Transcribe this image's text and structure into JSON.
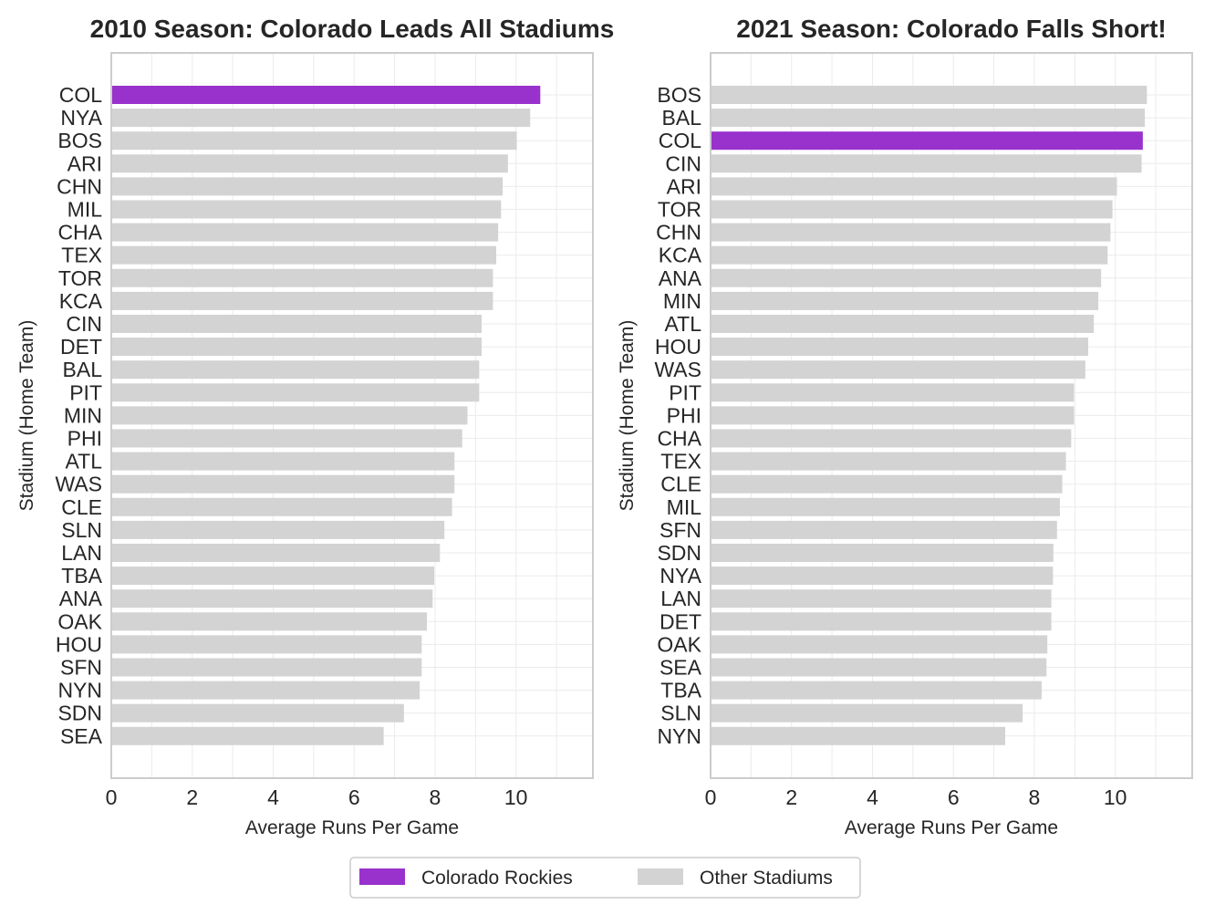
{
  "legend": {
    "items": [
      {
        "label": "Colorado Rockies",
        "color": "#9932CC"
      },
      {
        "label": "Other Stadiums",
        "color": "#D3D3D3"
      }
    ]
  },
  "chart_data": [
    {
      "type": "bar",
      "orientation": "horizontal",
      "title": "2010 Season: Colorado Leads All Stadiums",
      "xlabel": "Average Runs Per Game",
      "ylabel": "Stadium (Home Team)",
      "xlim": [
        0,
        11.9
      ],
      "xticks": [
        0,
        2,
        4,
        6,
        8,
        10
      ],
      "grid": true,
      "highlight_category": "COL",
      "highlight_color": "#9932CC",
      "bar_color": "#D3D3D3",
      "categories": [
        "COL",
        "NYA",
        "BOS",
        "ARI",
        "CHN",
        "MIL",
        "CHA",
        "TEX",
        "TOR",
        "KCA",
        "CIN",
        "DET",
        "BAL",
        "PIT",
        "MIN",
        "PHI",
        "ATL",
        "WAS",
        "CLE",
        "SLN",
        "LAN",
        "TBA",
        "ANA",
        "OAK",
        "HOU",
        "SFN",
        "NYN",
        "SDN",
        "SEA"
      ],
      "values": [
        10.6,
        10.35,
        10.02,
        9.8,
        9.67,
        9.63,
        9.56,
        9.51,
        9.43,
        9.43,
        9.15,
        9.15,
        9.09,
        9.09,
        8.8,
        8.67,
        8.48,
        8.48,
        8.42,
        8.23,
        8.12,
        7.98,
        7.94,
        7.8,
        7.67,
        7.67,
        7.62,
        7.23,
        6.73
      ]
    },
    {
      "type": "bar",
      "orientation": "horizontal",
      "title": "2021 Season: Colorado Falls Short!",
      "xlabel": "Average Runs Per Game",
      "ylabel": "Stadium (Home Team)",
      "xlim": [
        0,
        11.9
      ],
      "xticks": [
        0,
        2,
        4,
        6,
        8,
        10
      ],
      "grid": true,
      "highlight_category": "COL",
      "highlight_color": "#9932CC",
      "bar_color": "#D3D3D3",
      "categories": [
        "BOS",
        "BAL",
        "COL",
        "CIN",
        "ARI",
        "TOR",
        "CHN",
        "KCA",
        "ANA",
        "MIN",
        "ATL",
        "HOU",
        "WAS",
        "PIT",
        "PHI",
        "CHA",
        "TEX",
        "CLE",
        "MIL",
        "SFN",
        "SDN",
        "NYA",
        "LAN",
        "DET",
        "OAK",
        "SEA",
        "TBA",
        "SLN",
        "NYN"
      ],
      "values": [
        10.78,
        10.73,
        10.68,
        10.65,
        10.04,
        9.93,
        9.88,
        9.81,
        9.65,
        9.58,
        9.47,
        9.33,
        9.26,
        8.98,
        8.98,
        8.91,
        8.78,
        8.69,
        8.63,
        8.56,
        8.47,
        8.46,
        8.42,
        8.42,
        8.32,
        8.3,
        8.18,
        7.71,
        7.28
      ]
    }
  ]
}
